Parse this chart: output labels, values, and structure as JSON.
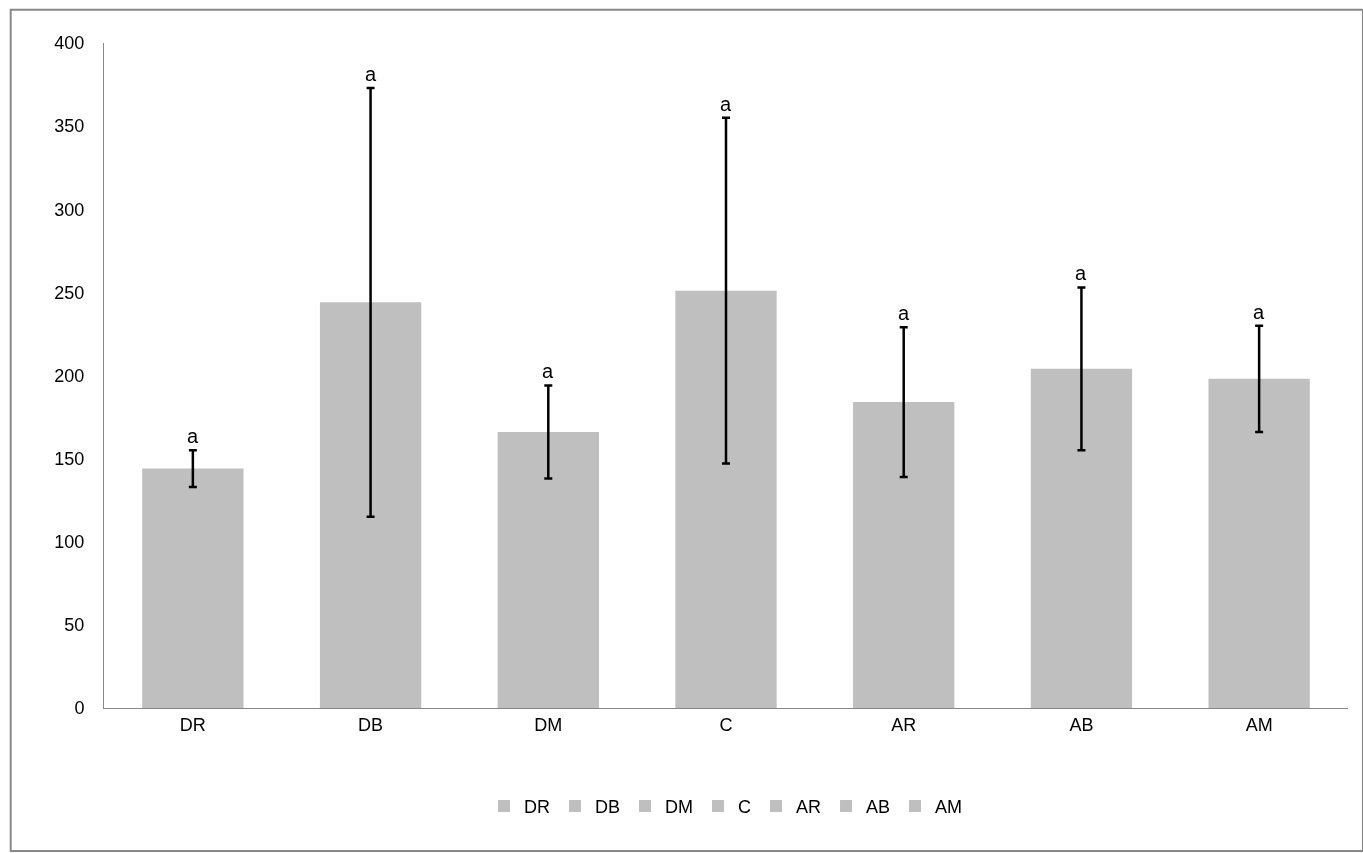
{
  "chart_data": {
    "type": "bar",
    "categories": [
      "DR",
      "DB",
      "DM",
      "C",
      "AR",
      "AB",
      "AM"
    ],
    "series": [
      {
        "name": "DR",
        "color": "#bfbfbf",
        "values": [
          144,
          null,
          null,
          null,
          null,
          null,
          null
        ],
        "errors": [
          11,
          null,
          null,
          null,
          null,
          null,
          null
        ]
      },
      {
        "name": "DB",
        "color": "#bfbfbf",
        "values": [
          null,
          244,
          null,
          null,
          null,
          null,
          null
        ],
        "errors": [
          null,
          129,
          null,
          null,
          null,
          null,
          null
        ]
      },
      {
        "name": "DM",
        "color": "#bfbfbf",
        "values": [
          null,
          null,
          166,
          null,
          null,
          null,
          null
        ],
        "errors": [
          null,
          null,
          28,
          null,
          null,
          null,
          null
        ]
      },
      {
        "name": "C",
        "color": "#bfbfbf",
        "values": [
          null,
          null,
          null,
          251,
          null,
          null,
          null
        ],
        "errors": [
          null,
          null,
          null,
          104,
          null,
          null,
          null
        ]
      },
      {
        "name": "AR",
        "color": "#bfbfbf",
        "values": [
          null,
          null,
          null,
          null,
          184,
          null,
          null
        ],
        "errors": [
          null,
          null,
          null,
          null,
          45,
          null,
          null
        ]
      },
      {
        "name": "AB",
        "color": "#bfbfbf",
        "values": [
          null,
          null,
          null,
          null,
          null,
          204,
          null
        ],
        "errors": [
          null,
          null,
          null,
          null,
          null,
          49,
          null
        ]
      },
      {
        "name": "AM",
        "color": "#bfbfbf",
        "values": [
          null,
          null,
          null,
          null,
          null,
          null,
          198
        ],
        "errors": [
          null,
          null,
          null,
          null,
          null,
          null,
          32
        ]
      }
    ],
    "annotations": [
      {
        "text": "a",
        "x": "DR",
        "y": 155
      },
      {
        "text": "a",
        "x": "DB",
        "y": 373
      },
      {
        "text": "a",
        "x": "DM",
        "y": 194
      },
      {
        "text": "a",
        "x": "C",
        "y": 355
      },
      {
        "text": "a",
        "x": "AR",
        "y": 229
      },
      {
        "text": "a",
        "x": "AB",
        "y": 253
      },
      {
        "text": "a",
        "x": "AM",
        "y": 230
      }
    ],
    "ylim": [
      0,
      400
    ],
    "yticks": [
      0,
      50,
      100,
      150,
      200,
      250,
      300,
      350,
      400
    ],
    "grid": false,
    "legend": "bottom"
  }
}
